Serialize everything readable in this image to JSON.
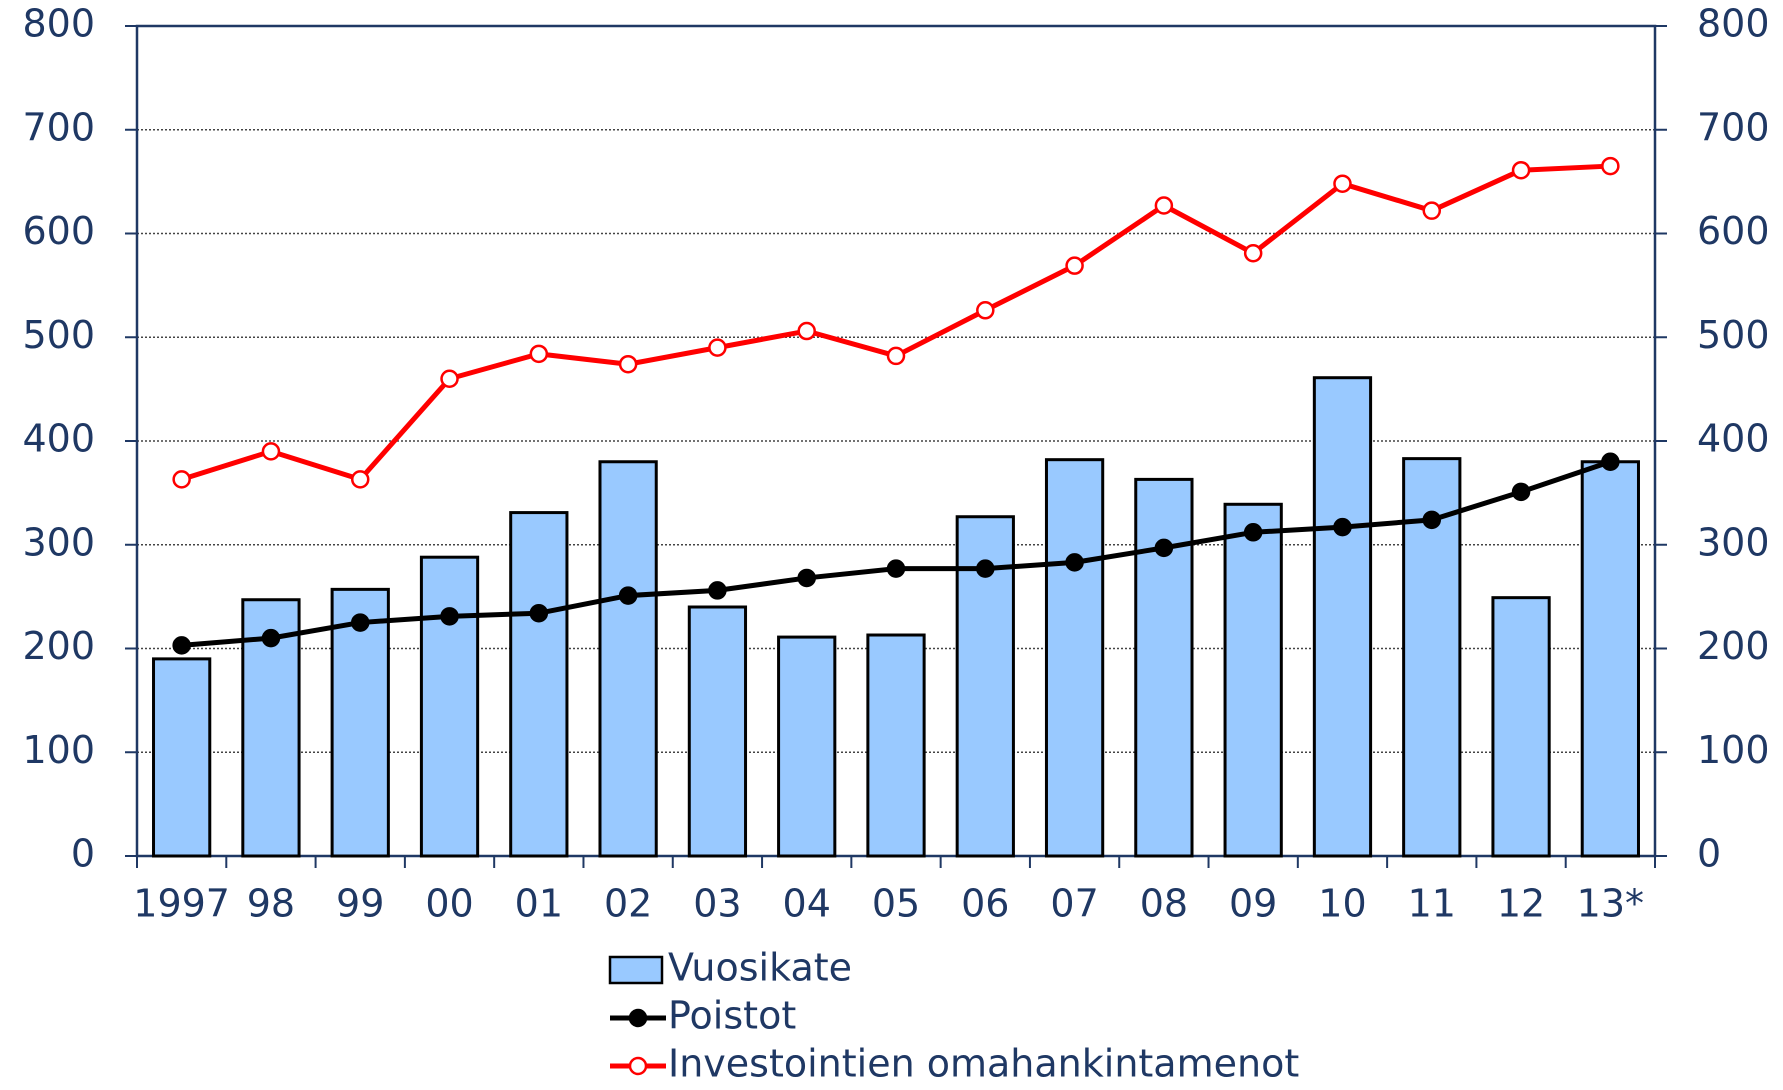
{
  "chart_data": {
    "type": "bar_line",
    "categories": [
      "1997",
      "98",
      "99",
      "00",
      "01",
      "02",
      "03",
      "04",
      "05",
      "06",
      "07",
      "08",
      "09",
      "10",
      "11",
      "12",
      "13*"
    ],
    "series": [
      {
        "name": "Vuosikate",
        "type": "bar",
        "color": "#99c9ff",
        "values": [
          190,
          247,
          257,
          288,
          331,
          380,
          240,
          211,
          213,
          327,
          382,
          363,
          339,
          461,
          383,
          249,
          380
        ]
      },
      {
        "name": "Poistot",
        "type": "line",
        "color": "#000000",
        "marker_fill": "#000000",
        "values": [
          203,
          210,
          225,
          231,
          234,
          251,
          256,
          268,
          277,
          277,
          283,
          297,
          312,
          317,
          324,
          351,
          380
        ]
      },
      {
        "name": "Investointien omahankintamenot",
        "type": "line",
        "color": "#ff0000",
        "marker_fill": "#ffffff",
        "values": [
          363,
          390,
          363,
          460,
          484,
          474,
          490,
          506,
          482,
          526,
          569,
          627,
          581,
          648,
          622,
          661,
          665
        ]
      }
    ],
    "ylim": [
      0,
      800
    ],
    "yticks": [
      0,
      100,
      200,
      300,
      400,
      500,
      600,
      700,
      800
    ],
    "y2lim": [
      0,
      800
    ],
    "y2ticks": [
      0,
      100,
      200,
      300,
      400,
      500,
      600,
      700,
      800
    ],
    "grid": true
  }
}
